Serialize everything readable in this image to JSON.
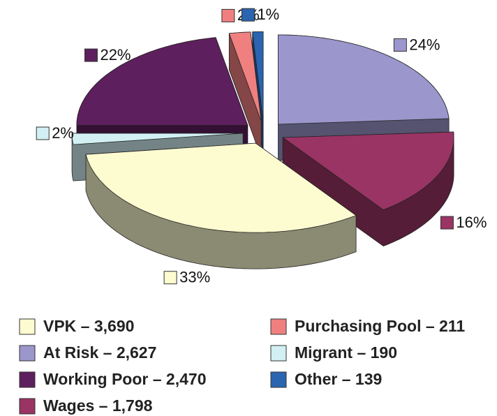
{
  "chart_data": {
    "type": "pie3d",
    "categories": [
      "At Risk – 2,627",
      "Wages – 1,798",
      "VPK  – 3,690",
      "Migrant – 190",
      "Working Poor – 2,470",
      "Purchasing Pool – 211",
      "Other – 139"
    ],
    "values": [
      24,
      16,
      33,
      2,
      22,
      2,
      1
    ],
    "value_labels": [
      "24%",
      "16%",
      "33%",
      "2%",
      "22%",
      "2%",
      "1%"
    ],
    "colors": [
      "#9b97cc",
      "#9a3464",
      "#fdfbd0",
      "#d2f0f4",
      "#5e1f5e",
      "#f08080",
      "#2b64b0"
    ],
    "legend_order": [
      2,
      0,
      4,
      1,
      5,
      3,
      6
    ]
  }
}
